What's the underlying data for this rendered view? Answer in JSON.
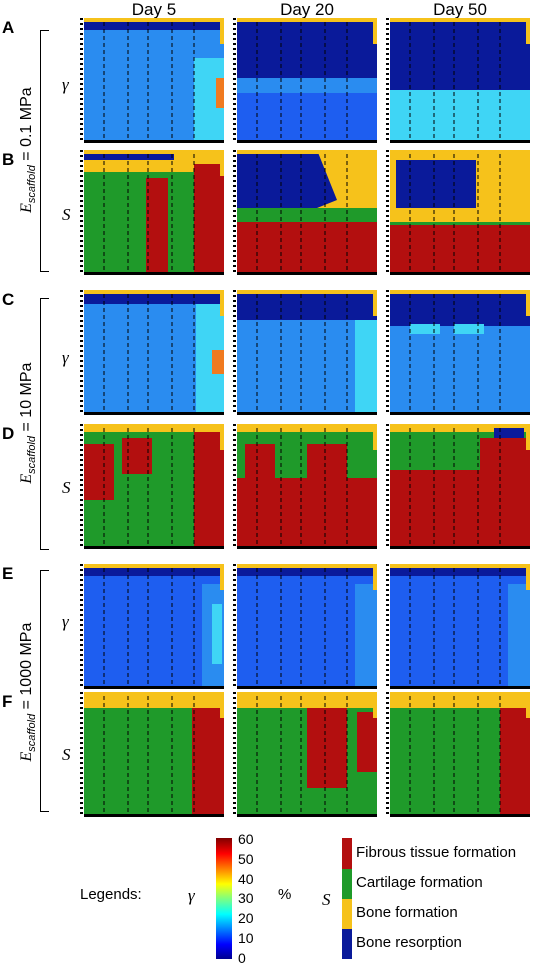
{
  "columns": [
    "Day 5",
    "Day 20",
    "Day 50"
  ],
  "rows": [
    {
      "letter": "A",
      "variable": "γ",
      "kind": "gamma"
    },
    {
      "letter": "B",
      "variable": "S",
      "kind": "stimulus"
    },
    {
      "letter": "C",
      "variable": "γ",
      "kind": "gamma"
    },
    {
      "letter": "D",
      "variable": "S",
      "kind": "stimulus"
    },
    {
      "letter": "E",
      "variable": "γ",
      "kind": "gamma"
    },
    {
      "letter": "F",
      "variable": "S",
      "kind": "stimulus"
    }
  ],
  "groups": [
    {
      "symbol": "E",
      "subscript": "scaffold",
      "value": " = 0.1 MPa"
    },
    {
      "symbol": "E",
      "subscript": "scaffold",
      "value": " = 10 MPa"
    },
    {
      "symbol": "E",
      "subscript": "scaffold",
      "value": " = 1000 MPa"
    }
  ],
  "legend": {
    "title": "Legends:",
    "gamma_symbol": "γ",
    "unit": "%",
    "ticks": [
      "60",
      "50",
      "40",
      "30",
      "20",
      "10",
      "0"
    ],
    "s_symbol": "S",
    "s_items": [
      {
        "label": "Fibrous tissue formation",
        "color": "#b30f0f"
      },
      {
        "label": "Cartilage formation",
        "color": "#1f9a2a"
      },
      {
        "label": "Bone formation",
        "color": "#f6c21b"
      },
      {
        "label": "Bone resorption",
        "color": "#0a1a9a"
      }
    ]
  },
  "colors": {
    "dark_blue": "#0a1a9a",
    "mid_blue": "#1e5ef0",
    "light_blue": "#2a8cf0",
    "cyan": "#3fd5f5",
    "red": "#b30f0f",
    "green": "#1f9a2a",
    "yellow": "#f6c21b",
    "orange": "#f07a20"
  }
}
